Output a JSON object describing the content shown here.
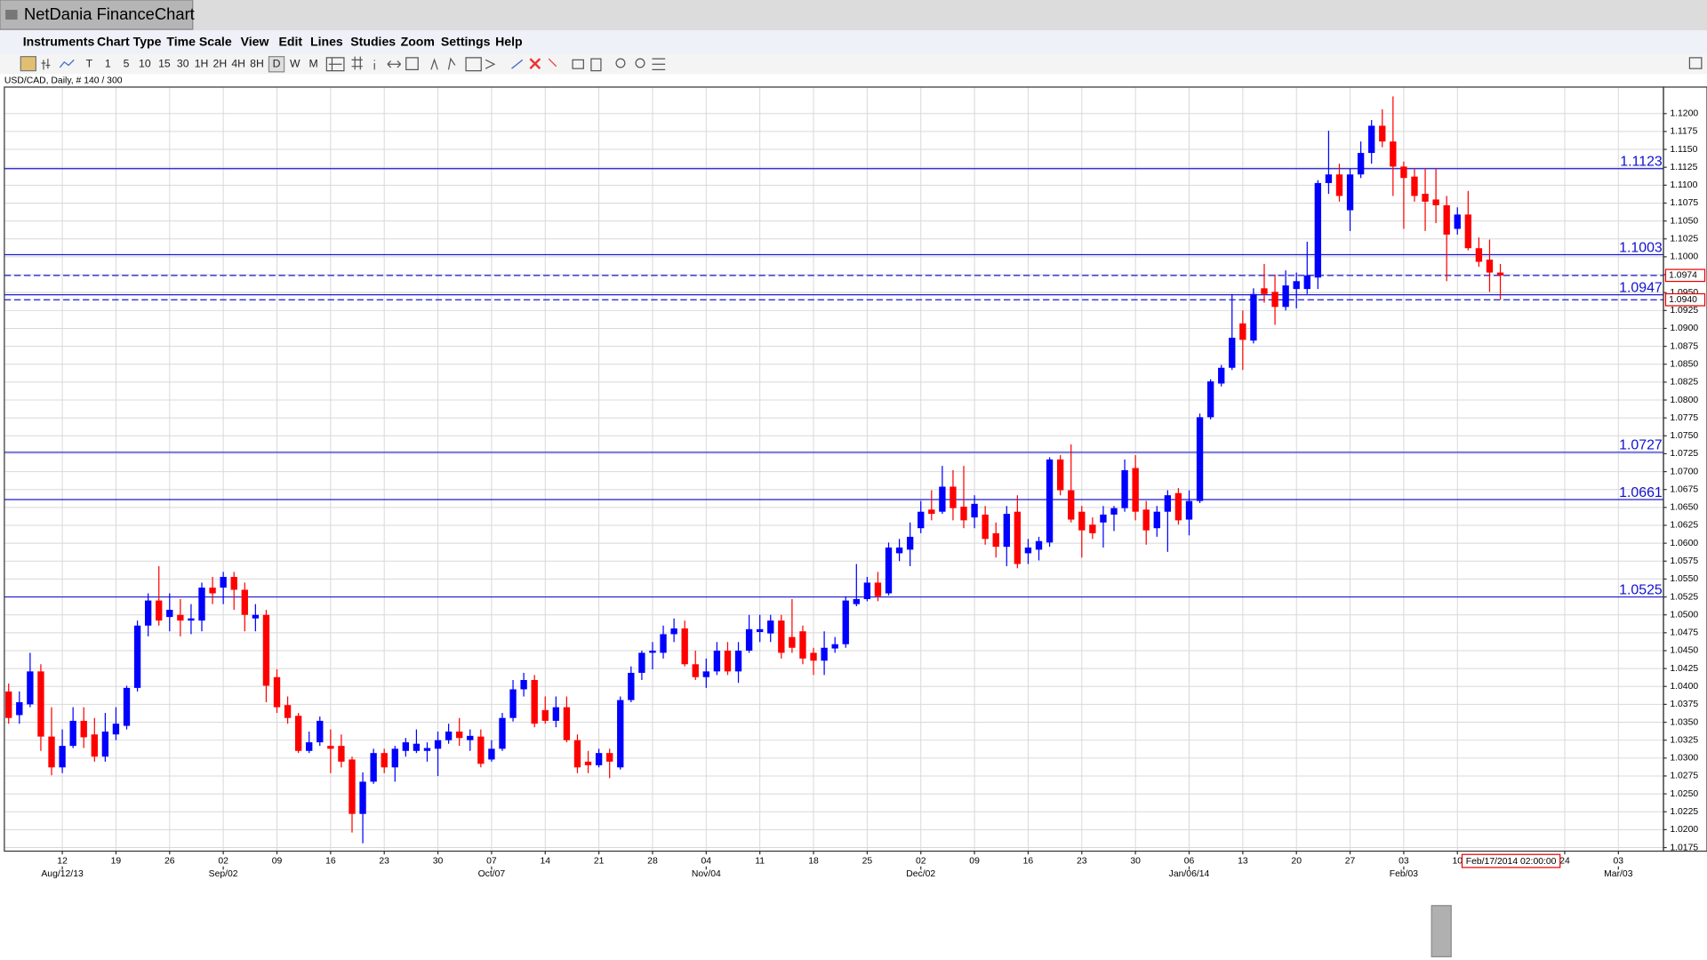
{
  "window": {
    "title": "NetDania FinanceChart"
  },
  "menu": [
    "Instruments",
    "Chart Type",
    "Time Scale",
    "View",
    "Edit",
    "Lines",
    "Studies",
    "Zoom",
    "Settings",
    "Help"
  ],
  "toolbar": [
    "T",
    "1",
    "5",
    "10",
    "15",
    "30",
    "1H",
    "2H",
    "4H",
    "8H",
    "D",
    "W",
    "M"
  ],
  "chart_info": "USD/CAD, Daily, # 140 / 300",
  "chart_data": {
    "type": "candlestick",
    "up_color": "#0000ff",
    "down_color": "#ff0000",
    "grid": true,
    "open": [
      1.0393,
      1.036,
      1.0375,
      1.0421,
      1.033,
      1.0287,
      1.0317,
      1.0352,
      1.0333,
      1.0302,
      1.0333,
      1.0345,
      1.0398,
      1.0485,
      1.052,
      1.0497,
      1.05,
      1.0492,
      1.0492,
      1.0538,
      1.0538,
      1.0553,
      1.0535,
      1.0495,
      1.05,
      1.0413,
      1.0374,
      1.0359,
      1.031,
      1.0322,
      1.0317,
      1.0317,
      1.0298,
      1.0222,
      1.0267,
      1.0307,
      1.0287,
      1.031,
      1.031,
      1.031,
      1.0313,
      1.0325,
      1.0337,
      1.0325,
      1.033,
      1.0298,
      1.0313,
      1.0356,
      1.0396,
      1.0409,
      1.0367,
      1.0352,
      1.0371,
      1.0325,
      1.0295,
      1.029,
      1.0307,
      1.0287,
      1.0381,
      1.0419,
      1.0447,
      1.0447,
      1.0473,
      1.0481,
      1.0431,
      1.0413,
      1.0421,
      1.045,
      1.0421,
      1.045,
      1.0476,
      1.0474,
      1.0492,
      1.0469,
      1.0477,
      1.0447,
      1.0436,
      1.0453,
      1.0459,
      1.0515,
      1.0522,
      1.0545,
      1.053,
      1.0586,
      1.0591,
      1.0621,
      1.0647,
      1.0644,
      1.0679,
      1.0651,
      1.0636,
      1.064,
      1.0614,
      1.0595,
      1.0644,
      1.0586,
      1.0591,
      1.0601,
      1.0717,
      1.0674,
      1.0644,
      1.0626,
      1.0629,
      1.064,
      1.0649,
      1.0705,
      1.0647,
      1.0621,
      1.0644,
      1.067,
      1.0633,
      1.0659,
      1.0776,
      1.0823,
      1.0845,
      1.0907,
      1.0883,
      1.0956,
      1.0951,
      1.093,
      1.0955,
      1.0955,
      1.0971,
      1.1103,
      1.1115,
      1.1065,
      1.1115,
      1.1145,
      1.1183,
      1.1161,
      1.1126,
      1.1112,
      1.1088,
      1.108,
      1.1072,
      1.1039,
      1.1059,
      1.1012,
      1.0996,
      1.0978
    ],
    "high": [
      1.0404,
      1.0393,
      1.0447,
      1.0431,
      1.0371,
      1.034,
      1.0371,
      1.0371,
      1.0356,
      1.0363,
      1.0371,
      1.0401,
      1.0492,
      1.053,
      1.0568,
      1.053,
      1.0522,
      1.0515,
      1.0545,
      1.0553,
      1.056,
      1.056,
      1.0545,
      1.0515,
      1.0507,
      1.0424,
      1.0386,
      1.0363,
      1.0337,
      1.0358,
      1.034,
      1.0333,
      1.0302,
      1.028,
      1.0313,
      1.0313,
      1.0317,
      1.0328,
      1.034,
      1.0322,
      1.0337,
      1.0348,
      1.0356,
      1.034,
      1.034,
      1.0325,
      1.0363,
      1.0409,
      1.0419,
      1.0416,
      1.0386,
      1.0386,
      1.0386,
      1.0333,
      1.031,
      1.0313,
      1.0313,
      1.0386,
      1.0428,
      1.045,
      1.0462,
      1.0485,
      1.0495,
      1.0492,
      1.045,
      1.0439,
      1.0462,
      1.0462,
      1.0462,
      1.05,
      1.05,
      1.05,
      1.05,
      1.0522,
      1.0485,
      1.0454,
      1.0477,
      1.0469,
      1.0526,
      1.0571,
      1.0553,
      1.056,
      1.0601,
      1.0606,
      1.0629,
      1.0659,
      1.0674,
      1.0708,
      1.0702,
      1.0708,
      1.0667,
      1.0652,
      1.0629,
      1.0652,
      1.0667,
      1.0606,
      1.0609,
      1.072,
      1.0723,
      1.0738,
      1.0652,
      1.0636,
      1.0652,
      1.0652,
      1.0717,
      1.0723,
      1.0659,
      1.0652,
      1.0674,
      1.0677,
      1.0674,
      1.0781,
      1.0829,
      1.0849,
      1.0948,
      1.0925,
      1.0956,
      1.099,
      1.0975,
      1.0981,
      1.0978,
      1.1021,
      1.1107,
      1.1176,
      1.113,
      1.1123,
      1.1161,
      1.1191,
      1.1206,
      1.1224,
      1.1133,
      1.1123,
      1.1123,
      1.1123,
      1.1085,
      1.1069,
      1.1092,
      1.1027,
      1.1024,
      1.099
    ],
    "low": [
      1.0348,
      1.0348,
      1.0371,
      1.031,
      1.0276,
      1.0279,
      1.0314,
      1.0314,
      1.0295,
      1.0295,
      1.0325,
      1.034,
      1.0393,
      1.047,
      1.0485,
      1.0477,
      1.047,
      1.0473,
      1.0477,
      1.0515,
      1.0515,
      1.0507,
      1.0477,
      1.0477,
      1.0378,
      1.0363,
      1.0348,
      1.0307,
      1.0307,
      1.0317,
      1.0279,
      1.0287,
      1.0196,
      1.0181,
      1.0264,
      1.0279,
      1.0267,
      1.0302,
      1.0307,
      1.0295,
      1.0275,
      1.032,
      1.0317,
      1.031,
      1.0287,
      1.0295,
      1.031,
      1.0351,
      1.0386,
      1.0343,
      1.0348,
      1.0343,
      1.0322,
      1.0279,
      1.0279,
      1.0287,
      1.0272,
      1.0284,
      1.0378,
      1.0409,
      1.0424,
      1.0439,
      1.0462,
      1.0428,
      1.0409,
      1.0398,
      1.0416,
      1.0416,
      1.0405,
      1.0447,
      1.0462,
      1.0462,
      1.0439,
      1.0447,
      1.0431,
      1.0416,
      1.0416,
      1.0447,
      1.0454,
      1.0512,
      1.0519,
      1.0519,
      1.0527,
      1.0575,
      1.0568,
      1.0614,
      1.0632,
      1.0641,
      1.0632,
      1.0621,
      1.0621,
      1.0598,
      1.058,
      1.0568,
      1.0565,
      1.0571,
      1.0576,
      1.0595,
      1.0667,
      1.0629,
      1.058,
      1.0606,
      1.0594,
      1.0617,
      1.0644,
      1.0632,
      1.0598,
      1.0609,
      1.0588,
      1.0626,
      1.0611,
      1.0656,
      1.0773,
      1.0819,
      1.0842,
      1.0842,
      1.0879,
      1.0936,
      1.0905,
      1.0925,
      1.0928,
      1.0948,
      1.0955,
      1.1088,
      1.1077,
      1.1036,
      1.111,
      1.113,
      1.1153,
      1.1085,
      1.1039,
      1.1077,
      1.1036,
      1.1047,
      1.0966,
      1.1031,
      1.1009,
      1.0986,
      1.0951,
      1.094
    ],
    "close": [
      1.0356,
      1.0378,
      1.0421,
      1.033,
      1.0287,
      1.0317,
      1.0352,
      1.0329,
      1.0302,
      1.0337,
      1.0348,
      1.0398,
      1.0485,
      1.052,
      1.0492,
      1.0507,
      1.0492,
      1.0495,
      1.0538,
      1.053,
      1.0553,
      1.0535,
      1.05,
      1.05,
      1.0401,
      1.0371,
      1.0356,
      1.031,
      1.0322,
      1.0352,
      1.0313,
      1.0295,
      1.0222,
      1.0267,
      1.0307,
      1.0287,
      1.0313,
      1.0322,
      1.032,
      1.0314,
      1.0325,
      1.0337,
      1.0328,
      1.0331,
      1.0292,
      1.0313,
      1.0356,
      1.0396,
      1.0409,
      1.0348,
      1.0352,
      1.0371,
      1.0325,
      1.0287,
      1.029,
      1.0307,
      1.0295,
      1.0381,
      1.0419,
      1.0447,
      1.045,
      1.0473,
      1.0481,
      1.0431,
      1.0413,
      1.0421,
      1.045,
      1.0421,
      1.045,
      1.048,
      1.048,
      1.0492,
      1.0447,
      1.0454,
      1.0439,
      1.0436,
      1.0454,
      1.0459,
      1.052,
      1.0522,
      1.0545,
      1.0526,
      1.0594,
      1.0594,
      1.0609,
      1.0644,
      1.0641,
      1.0679,
      1.0649,
      1.0632,
      1.0655,
      1.0606,
      1.0595,
      1.0641,
      1.0571,
      1.0594,
      1.0603,
      1.0717,
      1.0674,
      1.0633,
      1.0618,
      1.0614,
      1.064,
      1.0649,
      1.0702,
      1.0644,
      1.0618,
      1.0644,
      1.0667,
      1.0632,
      1.0659,
      1.0776,
      1.0826,
      1.0845,
      1.0887,
      1.0884,
      1.0948,
      1.0948,
      1.093,
      1.096,
      1.0966,
      1.0974,
      1.1103,
      1.1115,
      1.1085,
      1.1115,
      1.1145,
      1.1183,
      1.1161,
      1.1126,
      1.111,
      1.1085,
      1.1077,
      1.1072,
      1.1031,
      1.1059,
      1.1012,
      1.0993,
      1.0978,
      1.0974
    ],
    "xlim": [
      -0.4,
      154.2
    ],
    "xticks": [
      {
        "value": 5,
        "label": "12"
      },
      {
        "value": 10,
        "label": "19"
      },
      {
        "value": 15,
        "label": "26"
      },
      {
        "value": 20,
        "label": "02"
      },
      {
        "value": 25,
        "label": "09"
      },
      {
        "value": 30,
        "label": "16"
      },
      {
        "value": 35,
        "label": "23"
      },
      {
        "value": 40,
        "label": "30"
      },
      {
        "value": 45,
        "label": "07"
      },
      {
        "value": 50,
        "label": "14"
      },
      {
        "value": 55,
        "label": "21"
      },
      {
        "value": 60,
        "label": "28"
      },
      {
        "value": 65,
        "label": "04"
      },
      {
        "value": 70,
        "label": "11"
      },
      {
        "value": 75,
        "label": "18"
      },
      {
        "value": 80,
        "label": "25"
      },
      {
        "value": 85,
        "label": "02"
      },
      {
        "value": 90,
        "label": "09"
      },
      {
        "value": 95,
        "label": "16"
      },
      {
        "value": 100,
        "label": "23"
      },
      {
        "value": 105,
        "label": "30"
      },
      {
        "value": 110,
        "label": "06"
      },
      {
        "value": 115,
        "label": "13"
      },
      {
        "value": 120,
        "label": "20"
      },
      {
        "value": 125,
        "label": "27"
      },
      {
        "value": 130,
        "label": "03"
      },
      {
        "value": 135,
        "label": "10"
      },
      {
        "value": 145,
        "label": "24"
      },
      {
        "value": 150,
        "label": "03"
      }
    ],
    "xticks_major": [
      {
        "value": 5,
        "label": "Aug/12/13"
      },
      {
        "value": 20,
        "label": "Sep/02"
      },
      {
        "value": 45,
        "label": "Oct/07"
      },
      {
        "value": 65,
        "label": "Nov/04"
      },
      {
        "value": 85,
        "label": "Dec/02"
      },
      {
        "value": 110,
        "label": "Jan/06/14"
      },
      {
        "value": 130,
        "label": "Feb/03"
      },
      {
        "value": 150,
        "label": "Mar/03"
      }
    ],
    "crosshair": {
      "value": 140,
      "label": "Feb/17/2014 02:00:00"
    },
    "ylim": [
      1.017,
      1.1237
    ],
    "yticks": [
      1.0175,
      {
        "value": 1.02,
        "label": "1.0200"
      },
      1.0225,
      {
        "value": 1.025,
        "label": "1.0250"
      },
      1.0275,
      {
        "value": 1.03,
        "label": "1.0300"
      },
      1.0325,
      {
        "value": 1.035,
        "label": "1.0350"
      },
      1.0375,
      {
        "value": 1.04,
        "label": "1.0400"
      },
      1.0425,
      {
        "value": 1.045,
        "label": "1.0450"
      },
      1.0475,
      {
        "value": 1.05,
        "label": "1.0500"
      },
      1.0525,
      {
        "value": 1.055,
        "label": "1.0550"
      },
      1.0575,
      {
        "value": 1.06,
        "label": "1.0600"
      },
      1.0625,
      {
        "value": 1.065,
        "label": "1.0650"
      },
      1.0675,
      {
        "value": 1.07,
        "label": "1.0700"
      },
      1.0725,
      {
        "value": 1.075,
        "label": "1.0750"
      },
      1.0775,
      {
        "value": 1.08,
        "label": "1.0800"
      },
      1.0825,
      {
        "value": 1.085,
        "label": "1.0850"
      },
      1.0875,
      {
        "value": 1.09,
        "label": "1.0900"
      },
      1.0925,
      {
        "value": 1.095,
        "label": "1.0950"
      },
      1.0975,
      {
        "value": 1.1,
        "label": "1.1000"
      },
      1.1025,
      {
        "value": 1.105,
        "label": "1.1050"
      },
      1.1075,
      {
        "value": 1.11,
        "label": "1.1100"
      },
      1.1125,
      {
        "value": 1.115,
        "label": "1.1150"
      },
      1.1175,
      {
        "value": 1.12,
        "label": "1.1200"
      }
    ],
    "levels": [
      1.1123,
      1.1003,
      1.0947,
      1.0727,
      1.0661,
      1.0525
    ],
    "level_color": "#1a1ad0",
    "price_lines": [
      1.0974,
      {
        "value": 1.094,
        "label": "1.0940"
      }
    ]
  }
}
